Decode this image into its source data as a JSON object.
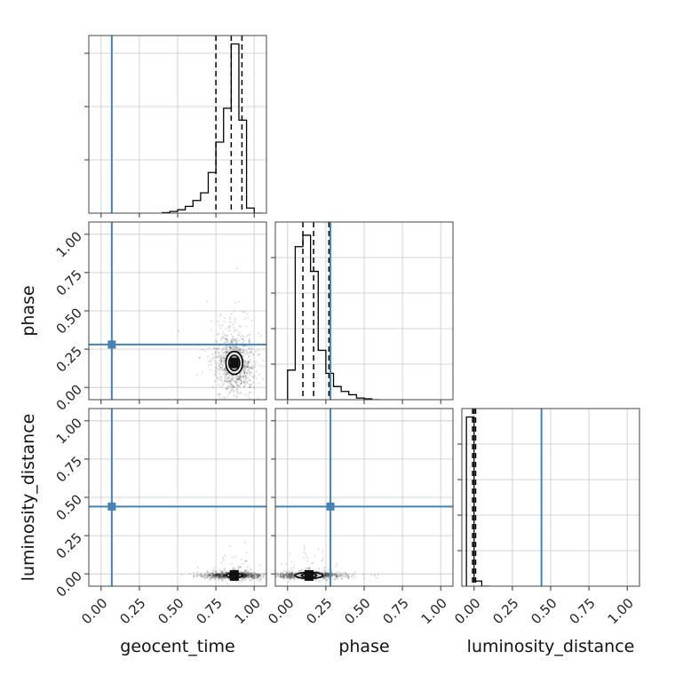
{
  "chart_data": {
    "type": "corner",
    "grid": true,
    "parameters": [
      "geocent_time",
      "phase",
      "luminosity_distance"
    ],
    "tick_labels": [
      "0.00",
      "0.25",
      "0.50",
      "0.75",
      "1.00"
    ],
    "axis_range": [
      -0.08,
      1.08
    ],
    "truths": {
      "geocent_time": 0.07,
      "phase": 0.28,
      "luminosity_distance": 0.44
    },
    "truth_color": "#4682b4",
    "histograms": {
      "geocent_time": {
        "bin_edges": [
          0.4,
          0.45,
          0.5,
          0.55,
          0.6,
          0.65,
          0.7,
          0.75,
          0.8,
          0.85,
          0.9,
          0.95,
          1.0,
          1.05
        ],
        "counts": [
          0.003,
          0.01,
          0.02,
          0.04,
          0.075,
          0.12,
          0.24,
          0.42,
          0.62,
          1.0,
          0.55,
          0.03,
          0.0
        ],
        "quantiles": [
          0.75,
          0.85,
          0.92
        ],
        "ymax": 1.05
      },
      "phase": {
        "bin_edges": [
          0.0,
          0.05,
          0.1,
          0.15,
          0.2,
          0.25,
          0.3,
          0.35,
          0.4,
          0.45,
          0.5,
          0.55,
          0.6
        ],
        "counts": [
          0.18,
          0.93,
          1.0,
          0.78,
          0.3,
          0.16,
          0.08,
          0.05,
          0.03,
          0.01,
          0.005,
          0.0
        ],
        "quantiles": [
          0.1,
          0.17,
          0.27
        ],
        "ymax": 1.08
      },
      "luminosity_distance": {
        "bin_edges": [
          -0.05,
          0.0,
          0.05,
          0.1
        ],
        "counts": [
          1.0,
          0.03,
          0.0
        ],
        "quantiles": [
          -0.01,
          0.0,
          0.01
        ],
        "ymax": 1.05
      }
    },
    "scatter": [
      {
        "x": "geocent_time",
        "y": "phase",
        "center": [
          0.87,
          0.16
        ],
        "spread": [
          0.06,
          0.09
        ],
        "contour_radii": [
          [
            0.055,
            0.075
          ],
          [
            0.035,
            0.05
          ],
          [
            0.015,
            0.022
          ]
        ]
      },
      {
        "x": "geocent_time",
        "y": "luminosity_distance",
        "center": [
          0.87,
          -0.01
        ],
        "spread": [
          0.09,
          0.01
        ],
        "contour_radii": [
          [
            0.05,
            0.016
          ],
          [
            0.03,
            0.01
          ],
          [
            0.012,
            0.006
          ]
        ]
      },
      {
        "x": "phase",
        "y": "luminosity_distance",
        "center": [
          0.14,
          -0.01
        ],
        "spread": [
          0.1,
          0.01
        ],
        "contour_radii": [
          [
            0.09,
            0.02
          ],
          [
            0.05,
            0.012
          ],
          [
            0.02,
            0.007
          ]
        ]
      }
    ]
  }
}
